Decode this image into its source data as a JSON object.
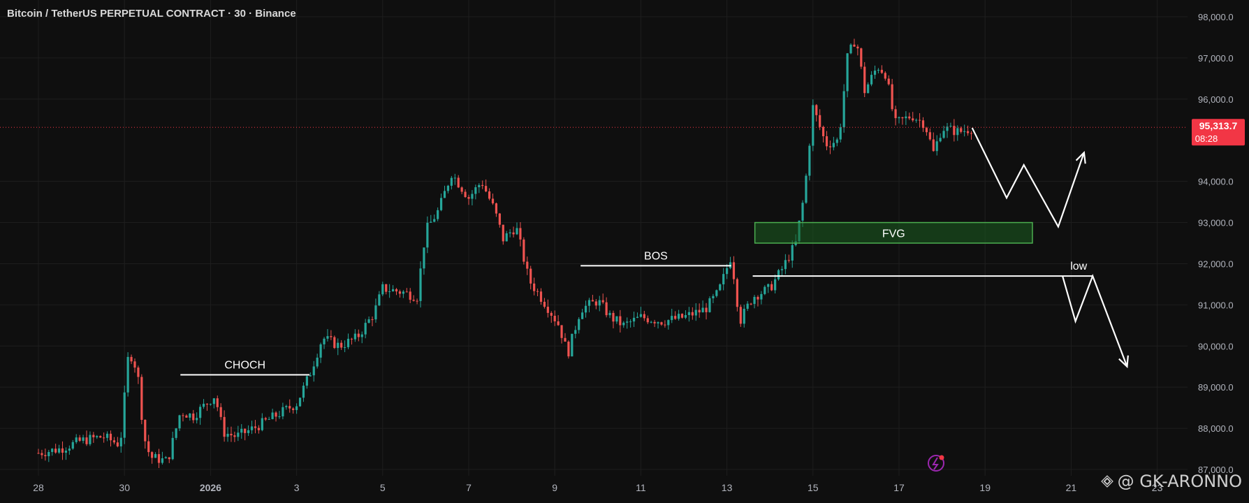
{
  "header": {
    "title": "Bitcoin / TetherUS PERPETUAL CONTRACT · 30 · Binance"
  },
  "watermark": {
    "text": "@ GK-ARONNO"
  },
  "colors": {
    "background": "#0f0f0f",
    "grid": "#1e1e1e",
    "up": "#26a69a",
    "down": "#ef5350",
    "price_badge": "#f23645",
    "zone_fill": "#1b5e20",
    "zone_border": "#4caf50",
    "axis_text": "#b2b5be",
    "annotation": "#ffffff",
    "price_line": "#f23645"
  },
  "icons": {
    "flash": "lightning-bolt-icon",
    "watermark": "binance-diamond-icon"
  },
  "chart_data": {
    "type": "candlestick",
    "x_axis": {
      "ticks": [
        "28",
        "30",
        "2026",
        "3",
        "5",
        "7",
        "9",
        "11",
        "13",
        "15",
        "17",
        "19",
        "21",
        "23"
      ],
      "tick_index": [
        0,
        2,
        4,
        6,
        8,
        10,
        12,
        14,
        16,
        18,
        20,
        22,
        24,
        26
      ]
    },
    "y_axis": {
      "range": [
        87000,
        98000
      ],
      "ticks": [
        "98,000.0",
        "97,000.0",
        "96,000.0",
        "94,000.0",
        "93,000.0",
        "92,000.0",
        "91,000.0",
        "90,000.0",
        "89,000.0",
        "88,000.0",
        "87,000.0"
      ],
      "tick_values": [
        98000,
        97000,
        96000,
        94000,
        93000,
        92000,
        91000,
        90000,
        89000,
        88000,
        87000
      ]
    },
    "current_price": {
      "value": 95313.7,
      "label": "95,313.7",
      "countdown": "08:28"
    },
    "price_path": [
      [
        0.0,
        87400
      ],
      [
        0.5,
        87500
      ],
      [
        1.0,
        87700
      ],
      [
        1.5,
        87800
      ],
      [
        1.9,
        87600
      ],
      [
        2.1,
        89900
      ],
      [
        2.3,
        89400
      ],
      [
        2.45,
        87800
      ],
      [
        2.6,
        87300
      ],
      [
        3.0,
        87200
      ],
      [
        3.3,
        88400
      ],
      [
        3.6,
        88300
      ],
      [
        3.9,
        88600
      ],
      [
        4.1,
        88800
      ],
      [
        4.3,
        87900
      ],
      [
        4.6,
        87800
      ],
      [
        5.0,
        88000
      ],
      [
        5.5,
        88300
      ],
      [
        6.0,
        88600
      ],
      [
        6.3,
        89300
      ],
      [
        6.6,
        90200
      ],
      [
        7.0,
        90000
      ],
      [
        7.4,
        90200
      ],
      [
        7.8,
        90800
      ],
      [
        8.0,
        91400
      ],
      [
        8.5,
        91300
      ],
      [
        8.8,
        91200
      ],
      [
        9.0,
        92800
      ],
      [
        9.3,
        93300
      ],
      [
        9.6,
        94200
      ],
      [
        10.0,
        93600
      ],
      [
        10.3,
        94000
      ],
      [
        10.6,
        93300
      ],
      [
        10.8,
        92600
      ],
      [
        11.1,
        92900
      ],
      [
        11.4,
        91600
      ],
      [
        11.8,
        91000
      ],
      [
        12.1,
        90500
      ],
      [
        12.3,
        89800
      ],
      [
        12.6,
        90900
      ],
      [
        13.0,
        91100
      ],
      [
        13.3,
        90700
      ],
      [
        13.6,
        90500
      ],
      [
        14.0,
        90700
      ],
      [
        14.5,
        90600
      ],
      [
        15.0,
        90700
      ],
      [
        15.5,
        90900
      ],
      [
        15.8,
        91300
      ],
      [
        16.1,
        92200
      ],
      [
        16.3,
        90600
      ],
      [
        16.6,
        91200
      ],
      [
        17.0,
        91400
      ],
      [
        17.3,
        91900
      ],
      [
        17.6,
        92500
      ],
      [
        17.8,
        93700
      ],
      [
        18.0,
        95800
      ],
      [
        18.3,
        94900
      ],
      [
        18.6,
        95000
      ],
      [
        18.8,
        97000
      ],
      [
        19.0,
        97500
      ],
      [
        19.2,
        96200
      ],
      [
        19.5,
        96800
      ],
      [
        19.7,
        96600
      ],
      [
        19.9,
        95400
      ],
      [
        20.3,
        95600
      ],
      [
        20.6,
        95400
      ],
      [
        20.8,
        94700
      ],
      [
        21.0,
        95300
      ],
      [
        21.4,
        95200
      ],
      [
        21.7,
        95300
      ]
    ],
    "annotations": [
      {
        "label": "CHOCH",
        "type": "level",
        "x0": 3.3,
        "x1": 6.3,
        "y": 89300
      },
      {
        "label": "BOS",
        "type": "level",
        "x0": 12.6,
        "x1": 16.1,
        "y": 91950
      },
      {
        "label": "low",
        "type": "level",
        "x0": 16.6,
        "x1": 24.5,
        "y": 91700
      },
      {
        "label": "FVG",
        "type": "zone",
        "x0": 16.65,
        "x1": 23.1,
        "y0": 92500,
        "y1": 93000
      }
    ],
    "projections": [
      {
        "name": "bullish-path",
        "points": [
          [
            21.7,
            95300
          ],
          [
            22.5,
            93600
          ],
          [
            22.9,
            94400
          ],
          [
            23.7,
            92900
          ],
          [
            24.3,
            94700
          ]
        ]
      },
      {
        "name": "bearish-path",
        "points": [
          [
            23.8,
            91700
          ],
          [
            24.1,
            90600
          ],
          [
            24.5,
            91700
          ],
          [
            25.3,
            89500
          ]
        ]
      }
    ]
  }
}
